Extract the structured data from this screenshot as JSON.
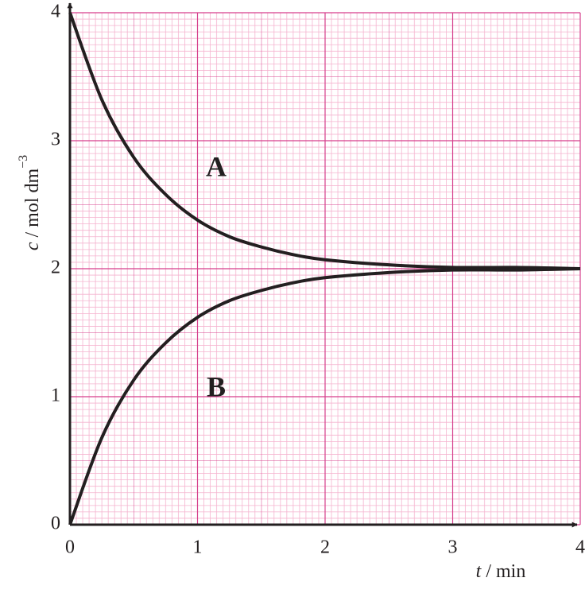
{
  "chart_data": {
    "type": "line",
    "x_label_symbol": "t",
    "x_label_unit": "/ min",
    "y_label_symbol": "c",
    "y_label_unit": "/ mol dm",
    "y_label_exponent": "−3",
    "x": [
      0,
      0.25,
      0.5,
      0.75,
      1,
      1.25,
      1.5,
      1.75,
      2,
      2.5,
      3,
      3.5,
      4
    ],
    "series": [
      {
        "name": "A",
        "color": "#231f20",
        "values": [
          4,
          3.32,
          2.87,
          2.58,
          2.38,
          2.25,
          2.17,
          2.11,
          2.07,
          2.03,
          2.01,
          2.01,
          2.0
        ]
      },
      {
        "name": "B",
        "color": "#231f20",
        "values": [
          0,
          0.68,
          1.13,
          1.42,
          1.62,
          1.75,
          1.83,
          1.89,
          1.93,
          1.97,
          1.99,
          1.99,
          2.0
        ]
      }
    ],
    "xlim": [
      0,
      4
    ],
    "ylim": [
      0,
      4
    ],
    "xticks": [
      0,
      1,
      2,
      3,
      4
    ],
    "yticks": [
      0,
      1,
      2,
      3,
      4
    ],
    "grid": true,
    "grid_color": "#d63f8c",
    "paper_color": "#f5b3cf"
  }
}
